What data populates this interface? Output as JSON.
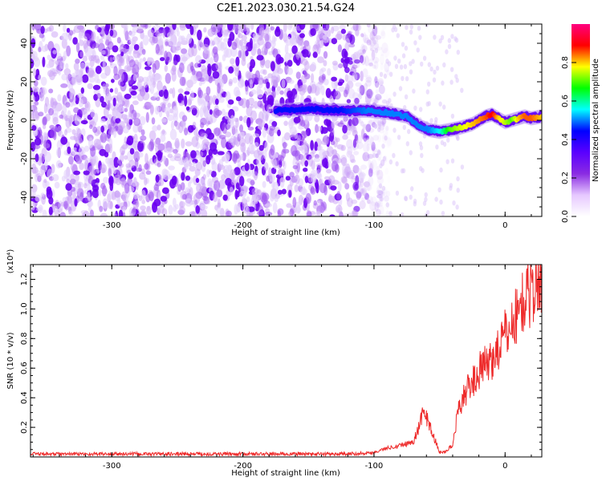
{
  "title": "C2E1.2023.030.21.54.G24",
  "chart_data": [
    {
      "type": "heatmap",
      "xlabel": "Height of straight line (km)",
      "ylabel": "Frequency (Hz)",
      "xlim": [
        -362,
        28
      ],
      "ylim": [
        -50,
        50
      ],
      "xticks": [
        -300,
        -200,
        -100,
        0
      ],
      "yticks": [
        -40,
        -20,
        0,
        20,
        40
      ],
      "colorbar": {
        "label": "Normalized spectral amplitude",
        "range": [
          0,
          1
        ],
        "ticks": [
          0.0,
          0.2,
          0.4,
          0.6,
          0.8
        ],
        "tick_labels": [
          "0.0",
          "0.2",
          "0.4",
          "0.6",
          "0.8"
        ],
        "colors": [
          "#ffffff",
          "#e6c8ff",
          "#8a2be2",
          "#5a00ff",
          "#0000ff",
          "#00ffff",
          "#00ff00",
          "#ffff00",
          "#ff0000",
          "#ff0080"
        ]
      },
      "ridge": {
        "x": [
          -175,
          -150,
          -125,
          -105,
          -90,
          -75,
          -65,
          -58,
          -50,
          -42,
          -35,
          -25,
          -15,
          -10,
          -5,
          0,
          5,
          10,
          15,
          20,
          28
        ],
        "y": [
          5,
          6,
          5,
          5,
          4,
          2,
          -3,
          -5,
          -6,
          -5,
          -4,
          -2,
          2,
          3,
          1,
          -1,
          0,
          1,
          2,
          1,
          2
        ],
        "amplitude": [
          0.45,
          0.45,
          0.45,
          0.5,
          0.5,
          0.5,
          0.5,
          0.5,
          0.55,
          0.7,
          0.75,
          0.8,
          0.85,
          0.9,
          0.8,
          0.75,
          0.7,
          0.8,
          0.85,
          0.85,
          0.8
        ]
      },
      "noise_extent_x": [
        -362,
        -100
      ]
    },
    {
      "type": "line",
      "xlabel": "Height of straight line (km)",
      "ylabel": "SNR (10 * v/v)",
      "y_multiplier": "(x10⁴)",
      "xlim": [
        -362,
        28
      ],
      "ylim": [
        0,
        1.3
      ],
      "xticks": [
        -300,
        -200,
        -100,
        0
      ],
      "yticks": [
        0.2,
        0.4,
        0.6,
        0.8,
        1.0,
        1.2
      ],
      "ytick_labels": [
        "0.2",
        "0.4",
        "0.6",
        "0.8",
        "1.0",
        "1.2"
      ],
      "series": [
        {
          "color": "#ee2b2b",
          "x": [
            -362,
            -300,
            -200,
            -120,
            -110,
            -100,
            -90,
            -80,
            -75,
            -70,
            -65,
            -62,
            -60,
            -58,
            -55,
            -52,
            -50,
            -48,
            -45,
            -40,
            -38,
            -35,
            -30,
            -25,
            -20,
            -15,
            -10,
            -5,
            0,
            5,
            10,
            15,
            20,
            25,
            28
          ],
          "y": [
            0.02,
            0.02,
            0.02,
            0.02,
            0.025,
            0.03,
            0.06,
            0.08,
            0.09,
            0.1,
            0.22,
            0.32,
            0.27,
            0.22,
            0.15,
            0.08,
            0.03,
            0.03,
            0.04,
            0.08,
            0.2,
            0.34,
            0.44,
            0.5,
            0.58,
            0.62,
            0.66,
            0.74,
            0.82,
            0.9,
            0.98,
            1.07,
            1.12,
            1.18,
            1.22
          ]
        }
      ]
    }
  ]
}
